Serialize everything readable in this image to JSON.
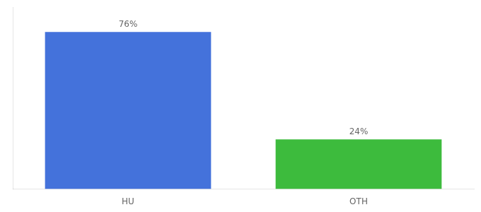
{
  "chart_data": {
    "type": "bar",
    "categories": [
      "HU",
      "OTH"
    ],
    "values": [
      76,
      24
    ],
    "value_labels": [
      "76%",
      "24%"
    ],
    "data_labels": true,
    "colors": [
      "#4472db",
      "#3dbb3d"
    ],
    "ylim": [
      0,
      88
    ],
    "tick_labels": "x",
    "grid": false
  }
}
